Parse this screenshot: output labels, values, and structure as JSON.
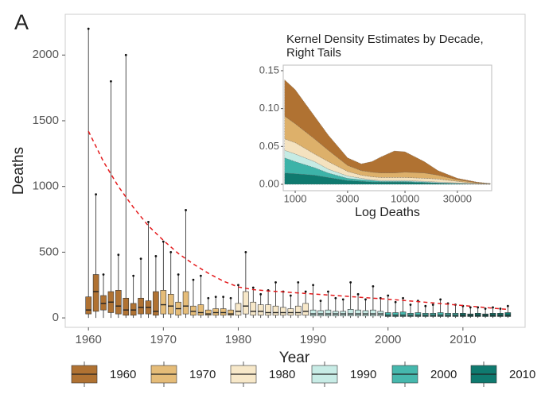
{
  "panel_label": "A",
  "chart_data": [
    {
      "type": "box",
      "xlabel": "Year",
      "ylabel": "Deaths",
      "x": [
        1960,
        1961,
        1962,
        1963,
        1964,
        1965,
        1966,
        1967,
        1968,
        1969,
        1970,
        1971,
        1972,
        1973,
        1974,
        1975,
        1976,
        1977,
        1978,
        1979,
        1980,
        1981,
        1982,
        1983,
        1984,
        1985,
        1986,
        1987,
        1988,
        1989,
        1990,
        1991,
        1992,
        1993,
        1994,
        1995,
        1996,
        1997,
        1998,
        1999,
        2000,
        2001,
        2002,
        2003,
        2004,
        2005,
        2006,
        2007,
        2008,
        2009,
        2010,
        2011,
        2012,
        2013,
        2014,
        2015,
        2016
      ],
      "min": [
        0,
        0,
        0,
        0,
        0,
        0,
        0,
        0,
        0,
        0,
        0,
        0,
        0,
        0,
        0,
        0,
        0,
        0,
        0,
        0,
        0,
        0,
        0,
        0,
        0,
        0,
        0,
        0,
        0,
        0,
        0,
        0,
        0,
        0,
        0,
        0,
        0,
        0,
        0,
        0,
        0,
        0,
        0,
        0,
        0,
        0,
        0,
        0,
        0,
        0,
        0,
        0,
        0,
        0,
        0,
        0,
        0
      ],
      "q1": [
        30,
        50,
        60,
        40,
        30,
        20,
        20,
        30,
        30,
        20,
        30,
        30,
        20,
        30,
        20,
        20,
        20,
        20,
        20,
        20,
        20,
        30,
        20,
        20,
        20,
        20,
        20,
        20,
        20,
        20,
        15,
        15,
        15,
        15,
        15,
        15,
        15,
        15,
        15,
        15,
        10,
        10,
        10,
        10,
        10,
        10,
        10,
        10,
        10,
        10,
        10,
        10,
        10,
        10,
        10,
        10,
        10
      ],
      "median": [
        60,
        200,
        110,
        120,
        90,
        60,
        60,
        80,
        80,
        50,
        100,
        90,
        70,
        90,
        50,
        40,
        30,
        40,
        40,
        30,
        50,
        90,
        50,
        50,
        40,
        40,
        40,
        40,
        40,
        50,
        30,
        30,
        30,
        30,
        30,
        30,
        30,
        30,
        30,
        30,
        20,
        20,
        20,
        20,
        20,
        20,
        20,
        20,
        20,
        20,
        20,
        20,
        20,
        20,
        20,
        20,
        20
      ],
      "q3": [
        160,
        330,
        170,
        200,
        210,
        150,
        110,
        150,
        130,
        200,
        210,
        180,
        120,
        200,
        90,
        100,
        60,
        70,
        70,
        60,
        110,
        200,
        120,
        100,
        100,
        90,
        80,
        70,
        90,
        110,
        60,
        55,
        60,
        50,
        50,
        65,
        60,
        55,
        60,
        50,
        40,
        40,
        45,
        35,
        40,
        35,
        35,
        40,
        35,
        35,
        35,
        30,
        35,
        30,
        35,
        35,
        40
      ],
      "max": [
        2200,
        940,
        330,
        1800,
        480,
        2000,
        320,
        450,
        730,
        470,
        580,
        500,
        330,
        820,
        290,
        320,
        150,
        160,
        160,
        150,
        250,
        500,
        230,
        180,
        210,
        270,
        200,
        170,
        270,
        200,
        250,
        130,
        200,
        150,
        140,
        270,
        180,
        140,
        240,
        150,
        170,
        120,
        150,
        100,
        130,
        90,
        100,
        140,
        110,
        100,
        90,
        80,
        80,
        70,
        80,
        70,
        90
      ],
      "decades": [
        {
          "name": "1960",
          "color": "#b07232"
        },
        {
          "name": "1970",
          "color": "#e5bc78"
        },
        {
          "name": "1980",
          "color": "#f7e8c9"
        },
        {
          "name": "1990",
          "color": "#c8ece6"
        },
        {
          "name": "2000",
          "color": "#46b8ad"
        },
        {
          "name": "2010",
          "color": "#0f7a6f"
        }
      ],
      "trend": {
        "color": "#e41a1c",
        "x": [
          1960,
          1962,
          1964,
          1966,
          1968,
          1970,
          1972,
          1974,
          1976,
          1978,
          1980,
          1982,
          1984,
          1986,
          1988,
          1990,
          1992,
          1994,
          1996,
          1998,
          2000,
          2002,
          2004,
          2006,
          2008,
          2010,
          2012,
          2014,
          2016
        ],
        "values": [
          1420,
          1190,
          1000,
          840,
          700,
          590,
          490,
          410,
          340,
          280,
          235,
          215,
          205,
          198,
          190,
          182,
          174,
          166,
          158,
          150,
          142,
          133,
          124,
          114,
          104,
          94,
          84,
          74,
          64
        ]
      },
      "xlim": [
        1956.9,
        2018.3
      ],
      "xticks": [
        1960,
        1970,
        1980,
        1990,
        2000,
        2010
      ],
      "ylim": [
        -72,
        2310
      ],
      "yticks": [
        0,
        500,
        1000,
        1500,
        2000
      ]
    },
    {
      "type": "stacked-area",
      "title": [
        "Kernel Density Estimates by Decade,",
        "Right Tails"
      ],
      "xlabel": "Log Deaths",
      "log_x": true,
      "xlim": [
        778,
        61600
      ],
      "xticks": [
        1000,
        3000,
        10000,
        30000
      ],
      "ylim": [
        -0.0084,
        0.1573
      ],
      "yticks": [
        {
          "value": 0,
          "label": "0.00"
        },
        {
          "value": 0.05,
          "label": "0.05"
        },
        {
          "value": 0.1,
          "label": "0.10"
        },
        {
          "value": 0.15,
          "label": "0.15"
        }
      ],
      "x": [
        800,
        1000,
        1500,
        2000,
        3000,
        4000,
        5000,
        6000,
        8000,
        10000,
        15000,
        20000,
        30000,
        45000,
        60000
      ],
      "series": [
        {
          "color": "#0f7a6f",
          "values": [
            0.015,
            0.014,
            0.012,
            0.009,
            0.005,
            0.004,
            0.003,
            0.003,
            0.003,
            0.003,
            0.002,
            0.0015,
            0.0008,
            0.0002,
            0.0001
          ]
        },
        {
          "color": "#3cb3a8",
          "values": [
            0.02,
            0.016,
            0.01,
            0.006,
            0.003,
            0.002,
            0.002,
            0.001,
            0.001,
            0.001,
            0.001,
            0.0005,
            0.0002,
            0.0001,
            0.0001
          ]
        },
        {
          "color": "#c5ebe4",
          "values": [
            0.01,
            0.01,
            0.008,
            0.005,
            0.003,
            0.002,
            0.001,
            0.001,
            0.001,
            0.001,
            0.001,
            0.001,
            0.001,
            0.0002,
            0.0001
          ]
        },
        {
          "color": "#f4e2bf",
          "values": [
            0.015,
            0.015,
            0.01,
            0.01,
            0.006,
            0.004,
            0.004,
            0.004,
            0.004,
            0.004,
            0.004,
            0.004,
            0.002,
            0.0005,
            0.0002
          ]
        },
        {
          "color": "#ddb06a",
          "values": [
            0.03,
            0.025,
            0.02,
            0.015,
            0.008,
            0.006,
            0.006,
            0.006,
            0.006,
            0.007,
            0.007,
            0.005,
            0.002,
            0.001,
            0.0005
          ]
        },
        {
          "color": "#b07232",
          "values": [
            0.048,
            0.045,
            0.03,
            0.02,
            0.01,
            0.009,
            0.014,
            0.021,
            0.029,
            0.027,
            0.015,
            0.006,
            0.002,
            0.001,
            0
          ]
        }
      ]
    }
  ]
}
